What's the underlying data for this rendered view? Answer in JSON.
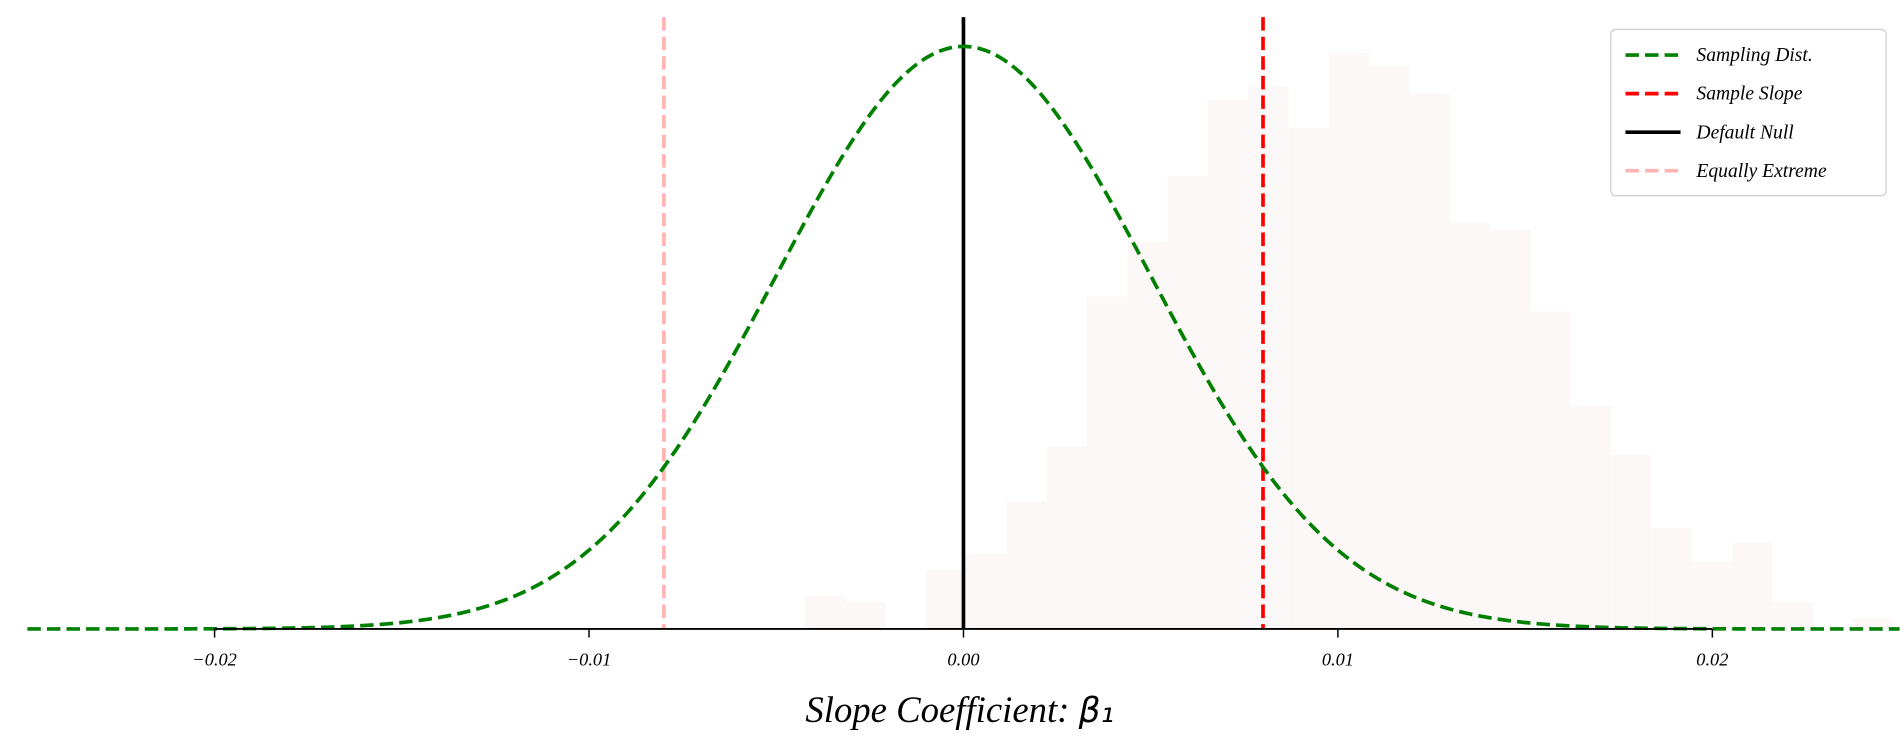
{
  "chart_data": {
    "type": "line",
    "title": "",
    "xlabel": "Slope Coefficient: ",
    "xlabel_symbol": "β₁",
    "ylabel": "",
    "xlim": [
      -0.025,
      0.025
    ],
    "ylim": [
      0,
      83.8
    ],
    "xticks": [
      -0.02,
      -0.01,
      0.0,
      0.01,
      0.02
    ],
    "xtick_labels": [
      "−0.02",
      "−0.01",
      "0.00",
      "0.01",
      "0.02"
    ],
    "grid": false,
    "legend_position": "top-right",
    "sampling_distribution": {
      "name": "Sampling Dist.",
      "mean": 0.0,
      "sd": 0.005,
      "color": "#008000",
      "style": "dashed"
    },
    "vlines": [
      {
        "name": "Sample Slope",
        "x": 0.008,
        "color": "#ff0000",
        "style": "dashed"
      },
      {
        "name": "Default Null",
        "x": 0.0,
        "color": "#000000",
        "style": "solid"
      },
      {
        "name": "Equally Extreme",
        "x": -0.008,
        "color": "#ffb3b3",
        "style": "dashed"
      }
    ],
    "histogram": {
      "color": "#fdf8f8",
      "bin_width": 0.001077,
      "bin_starts": [
        -0.00423,
        -0.00316,
        -0.00209,
        -0.00101,
        7e-05,
        0.00115,
        0.00222,
        0.0033,
        0.00438,
        0.00545,
        0.00653,
        0.00761,
        0.00869,
        0.00976,
        0.01084,
        0.01192,
        0.01299,
        0.01407,
        0.01515,
        0.01622,
        0.0173,
        0.01838,
        0.01946,
        0.02053,
        0.02161,
        0.02269,
        0.02376
      ],
      "densities": [
        4.5,
        3.6,
        0,
        8.1,
        10.3,
        17.5,
        25.0,
        45.5,
        53.0,
        62.1,
        72.5,
        74.3,
        68.6,
        78.9,
        77.1,
        73.3,
        55.6,
        54.7,
        43.5,
        30.6,
        23.9,
        13.8,
        9.2,
        11.8,
        3.6,
        0,
        1.5
      ]
    },
    "legend": [
      "Sampling Dist.",
      "Sample Slope",
      "Default Null",
      "Equally Extreme"
    ]
  }
}
